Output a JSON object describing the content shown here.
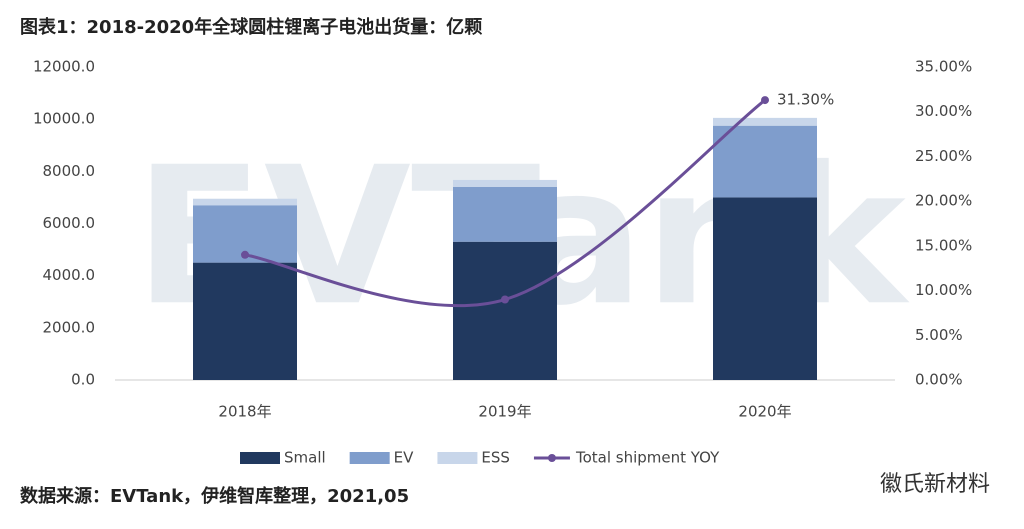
{
  "chart_data": {
    "type": "bar",
    "stacked": true,
    "title": "图表1：2018-2020年全球圆柱锂离子电池出货量：亿颗",
    "categories": [
      "2018年",
      "2019年",
      "2020年"
    ],
    "series": [
      {
        "name": "Small",
        "color": "#21395f",
        "values": [
          4500,
          5300,
          7000
        ]
      },
      {
        "name": "EV",
        "color": "#7f9dcc",
        "values": [
          2200,
          2100,
          2750
        ]
      },
      {
        "name": "ESS",
        "color": "#c8d6ea",
        "values": [
          250,
          270,
          300
        ]
      },
      {
        "name": "Total shipment YOY",
        "type": "line",
        "axis": "y2",
        "color": "#6a4f98",
        "values": [
          14,
          9,
          31.3
        ],
        "value_labels": [
          null,
          null,
          "31.30%"
        ]
      }
    ],
    "ylim": [
      0,
      12000
    ],
    "yticks": [
      {
        "value": 0,
        "label": "0.0"
      },
      {
        "value": 2000,
        "label": "2000.0"
      },
      {
        "value": 4000,
        "label": "4000.0"
      },
      {
        "value": 6000,
        "label": "6000.0"
      },
      {
        "value": 8000,
        "label": "8000.0"
      },
      {
        "value": 10000,
        "label": "10000.0"
      },
      {
        "value": 12000,
        "label": "12000.0"
      }
    ],
    "y2lim": [
      0,
      35
    ],
    "y2ticks": [
      {
        "value": 0,
        "label": "0.00%"
      },
      {
        "value": 5,
        "label": "5.00%"
      },
      {
        "value": 10,
        "label": "10.00%"
      },
      {
        "value": 15,
        "label": "15.00%"
      },
      {
        "value": 20,
        "label": "20.00%"
      },
      {
        "value": 25,
        "label": "25.00%"
      },
      {
        "value": 30,
        "label": "30.00%"
      },
      {
        "value": 35,
        "label": "35.00%"
      }
    ],
    "source": "数据来源：EVTank，伊维智库整理，2021,05",
    "watermarks": [
      "EVTank",
      "徽氏新材料"
    ]
  }
}
